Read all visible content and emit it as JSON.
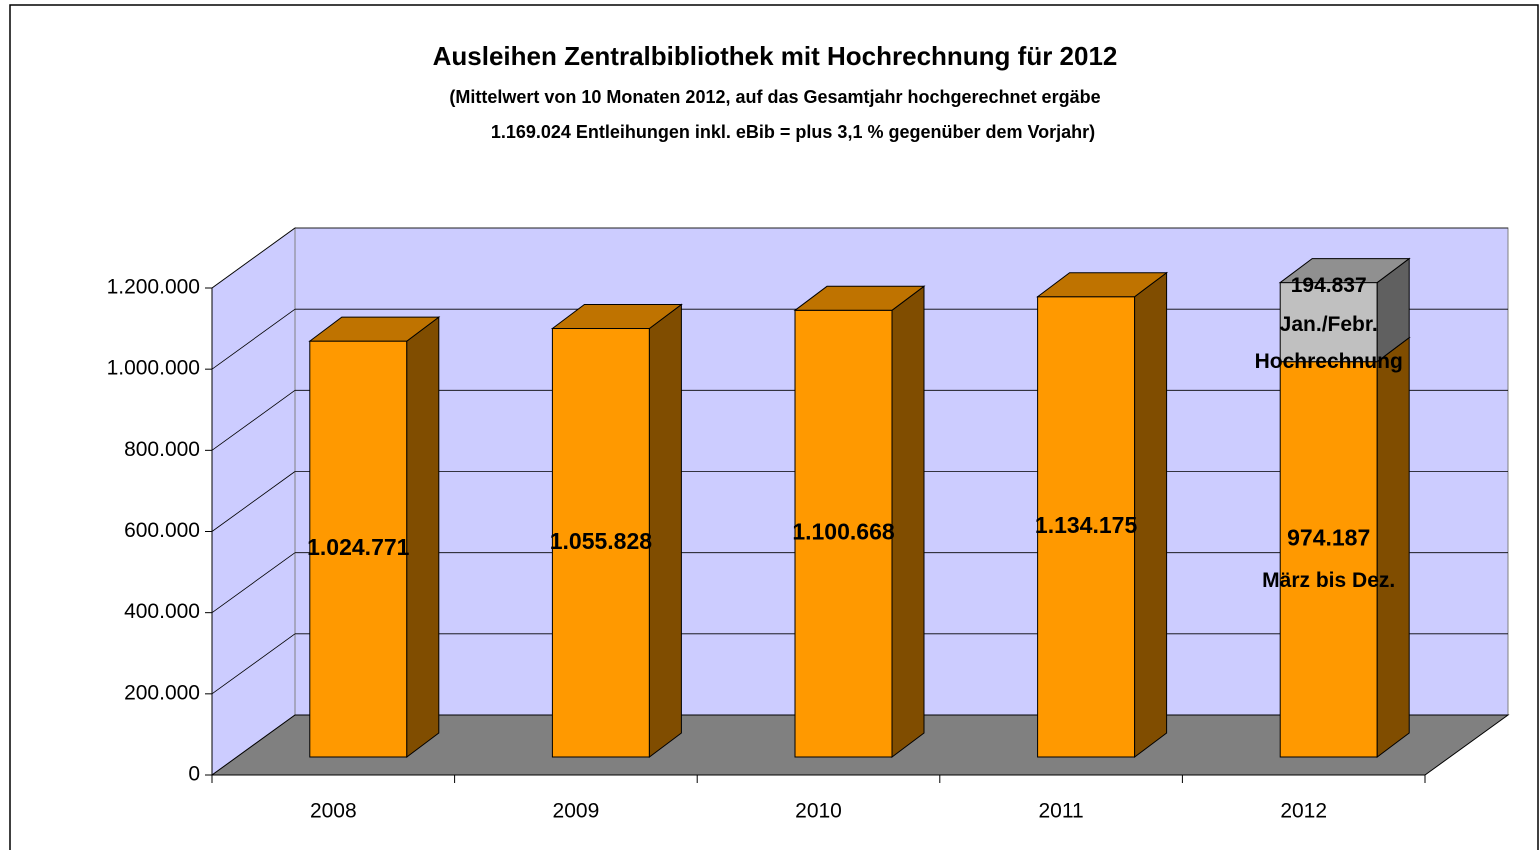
{
  "chart_data": {
    "type": "bar3d_stacked",
    "title": "Ausleihen Zentralbibliothek mit Hochrechnung für 2012",
    "subtitle": [
      "(Mittelwert von 10 Monaten 2012, auf das Gesamtjahr hochgerechnet ergäbe",
      "1.169.024 Entleihungen inkl. eBib = plus 3,1 % gegenüber dem Vorjahr)"
    ],
    "categories": [
      "2008",
      "2009",
      "2010",
      "2011",
      "2012"
    ],
    "series": [
      {
        "color": "#ff9900",
        "values": [
          1024771,
          1055828,
          1100668,
          1134175,
          974187
        ],
        "value_labels": [
          "1.024.771",
          "1.055.828",
          "1.100.668",
          "1.134.175",
          "974.187"
        ]
      },
      {
        "color": "#c0c0c0",
        "values": [
          null,
          null,
          null,
          null,
          194837
        ],
        "value_labels": [
          null,
          null,
          null,
          null,
          "194.837"
        ]
      }
    ],
    "annotations": [
      "März bis Dez.",
      "Jan./Febr.",
      "Hochrechnung"
    ],
    "ylim": [
      0,
      1200000
    ],
    "yticks": [
      0,
      {
        "value": 200000,
        "label": "200.000"
      },
      {
        "value": 400000,
        "label": "400.000"
      },
      {
        "value": 600000,
        "label": "600.000"
      },
      {
        "value": 800000,
        "label": "800.000"
      },
      {
        "value": 1000000,
        "label": "1.000.000"
      },
      {
        "value": 1200000,
        "label": "1.200.000"
      }
    ],
    "grid": true
  }
}
